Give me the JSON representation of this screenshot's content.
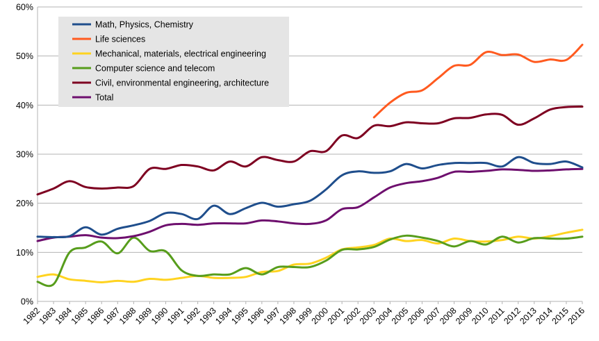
{
  "chart_data": {
    "type": "line",
    "title": "",
    "xlabel": "",
    "ylabel": "",
    "ylim": [
      0,
      60
    ],
    "y_ticks": [
      "0%",
      "10%",
      "20%",
      "30%",
      "40%",
      "50%",
      "60%"
    ],
    "grid": "horizontal",
    "legend_position": "top-left",
    "x": [
      "1982",
      "1983",
      "1984",
      "1985",
      "1986",
      "1987",
      "1988",
      "1989",
      "1990",
      "1991",
      "1992",
      "1993",
      "1994",
      "1995",
      "1996",
      "1997",
      "1998",
      "1999",
      "2000",
      "2001",
      "2002",
      "2003",
      "2004",
      "2005",
      "2006",
      "2007",
      "2008",
      "2009",
      "2010",
      "2011",
      "2012",
      "2013",
      "2014",
      "2015",
      "2016"
    ],
    "series": [
      {
        "name": "Math, Physics, Chemistry",
        "color": "#1f4e8c",
        "values": [
          13.2,
          13.1,
          13.3,
          15.1,
          13.6,
          14.8,
          15.5,
          16.4,
          18.0,
          17.8,
          16.8,
          19.5,
          17.8,
          19.0,
          20.1,
          19.3,
          19.8,
          20.5,
          22.8,
          25.7,
          26.5,
          26.2,
          26.5,
          28.0,
          27.1,
          27.8,
          28.2,
          28.2,
          28.2,
          27.5,
          29.4,
          28.2,
          28.0,
          28.5,
          27.3
        ]
      },
      {
        "name": "Life sciences",
        "color": "#ff5a1f",
        "values": [
          null,
          null,
          null,
          null,
          null,
          null,
          null,
          null,
          null,
          null,
          null,
          null,
          null,
          null,
          null,
          null,
          null,
          null,
          null,
          null,
          null,
          37.5,
          40.5,
          42.5,
          43.0,
          45.5,
          48.0,
          48.2,
          50.8,
          50.2,
          50.3,
          48.8,
          49.3,
          49.2,
          52.3
        ]
      },
      {
        "name": "Mechanical, materials, electrical engineering",
        "color": "#ffd320",
        "values": [
          5.0,
          5.5,
          4.5,
          4.2,
          3.9,
          4.2,
          4.0,
          4.6,
          4.4,
          4.8,
          5.2,
          4.8,
          4.8,
          5.0,
          6.0,
          6.2,
          7.5,
          7.7,
          8.9,
          10.6,
          11.0,
          11.5,
          12.8,
          12.3,
          12.5,
          11.8,
          12.8,
          12.3,
          12.2,
          12.5,
          13.2,
          12.8,
          13.3,
          14.0,
          14.6
        ]
      },
      {
        "name": "Computer science and telecom",
        "color": "#579d1c",
        "values": [
          4.0,
          3.5,
          10.0,
          11.0,
          12.2,
          9.8,
          13.0,
          10.3,
          10.2,
          6.3,
          5.2,
          5.5,
          5.5,
          6.8,
          5.5,
          7.0,
          7.0,
          7.0,
          8.3,
          10.5,
          10.6,
          11.1,
          12.6,
          13.4,
          13.0,
          12.3,
          11.2,
          12.3,
          11.6,
          13.2,
          12.0,
          12.9,
          12.8,
          12.8,
          13.2
        ]
      },
      {
        "name": "Civil, environmental engineering, architecture",
        "color": "#7e0021",
        "values": [
          21.8,
          23.0,
          24.5,
          23.3,
          23.0,
          23.2,
          23.5,
          27.0,
          27.0,
          27.8,
          27.5,
          26.7,
          28.5,
          27.5,
          29.4,
          28.8,
          28.5,
          30.6,
          30.6,
          33.8,
          33.3,
          35.8,
          35.7,
          36.5,
          36.3,
          36.3,
          37.3,
          37.4,
          38.1,
          38.0,
          36.0,
          37.3,
          39.1,
          39.6,
          39.7
        ]
      },
      {
        "name": "Total",
        "color": "#6e0f6e",
        "values": [
          12.3,
          13.0,
          13.2,
          13.5,
          13.0,
          12.9,
          13.3,
          14.2,
          15.5,
          15.8,
          15.6,
          15.9,
          15.9,
          15.9,
          16.5,
          16.3,
          15.9,
          15.8,
          16.5,
          18.8,
          19.2,
          21.2,
          23.2,
          24.1,
          24.5,
          25.2,
          26.4,
          26.4,
          26.6,
          26.9,
          26.8,
          26.6,
          26.7,
          26.9,
          27.0
        ]
      }
    ]
  }
}
